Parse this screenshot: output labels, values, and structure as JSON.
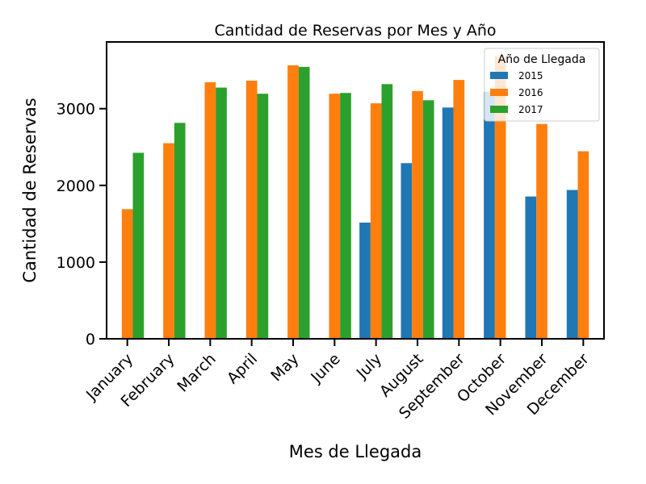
{
  "chart_data": {
    "type": "bar",
    "title": "Cantidad de Reservas por Mes y Año",
    "xlabel": "Mes de Llegada",
    "ylabel": "Cantidad de Reservas",
    "categories": [
      "January",
      "February",
      "March",
      "April",
      "May",
      "June",
      "July",
      "August",
      "September",
      "October",
      "November",
      "December"
    ],
    "ylim": [
      0,
      3870
    ],
    "yticks": [
      0,
      1000,
      2000,
      3000
    ],
    "grid": false,
    "legend": {
      "title": "Año de Llegada",
      "placement": "top-right"
    },
    "series": [
      {
        "name": "2015",
        "color": "#1f77b4",
        "values": [
          null,
          null,
          null,
          null,
          null,
          null,
          1515,
          2290,
          3015,
          3220,
          1855,
          1940
        ]
      },
      {
        "name": "2016",
        "color": "#ff7f0e",
        "values": [
          1690,
          2550,
          3345,
          3365,
          3565,
          3195,
          3070,
          3230,
          3375,
          3680,
          2800,
          2445
        ]
      },
      {
        "name": "2017",
        "color": "#2ca02c",
        "values": [
          2425,
          2815,
          3275,
          3195,
          3545,
          3205,
          3320,
          3110,
          null,
          null,
          null,
          null
        ]
      }
    ]
  }
}
